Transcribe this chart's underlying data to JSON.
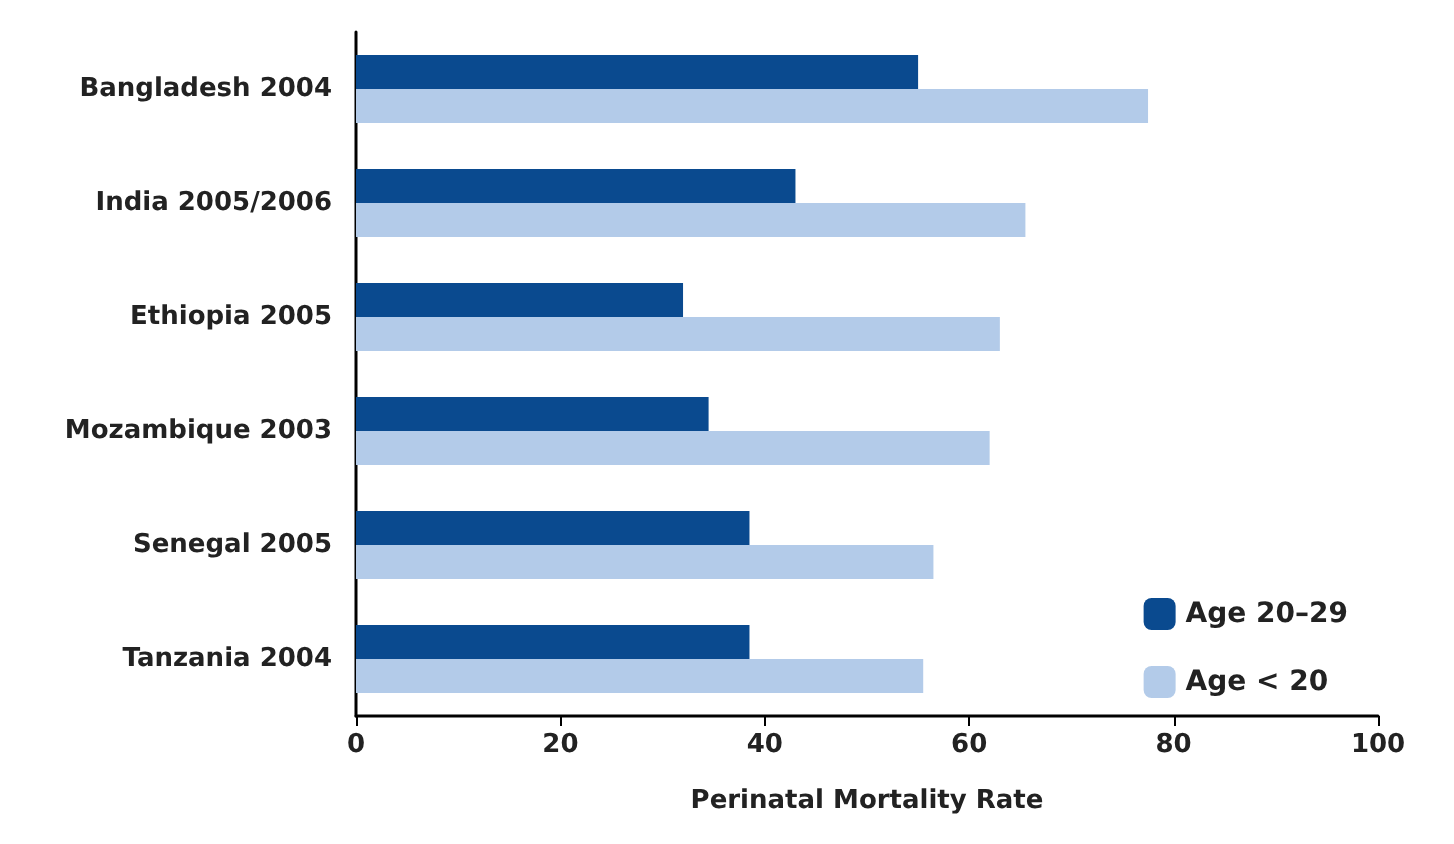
{
  "chart_data": {
    "type": "bar",
    "orientation": "horizontal",
    "xlabel": "Perinatal Mortality Rate",
    "categories": [
      "Bangladesh 2004",
      "India 2005/2006",
      "Ethiopia 2005",
      "Mozambique 2003",
      "Senegal 2005",
      "Tanzania 2004"
    ],
    "series": [
      {
        "name": "Age 20–29",
        "color": "#0a4a8f",
        "values": [
          55,
          43,
          32,
          34.5,
          38.5,
          38.5
        ]
      },
      {
        "name": "Age < 20",
        "color": "#b3cbe9",
        "values": [
          77.5,
          65.5,
          63,
          62,
          56.5,
          55.5
        ]
      }
    ],
    "xlim": [
      0,
      100
    ],
    "xticks": [
      0,
      20,
      40,
      60,
      80,
      100
    ],
    "grid": false,
    "legend": "bottom right"
  }
}
